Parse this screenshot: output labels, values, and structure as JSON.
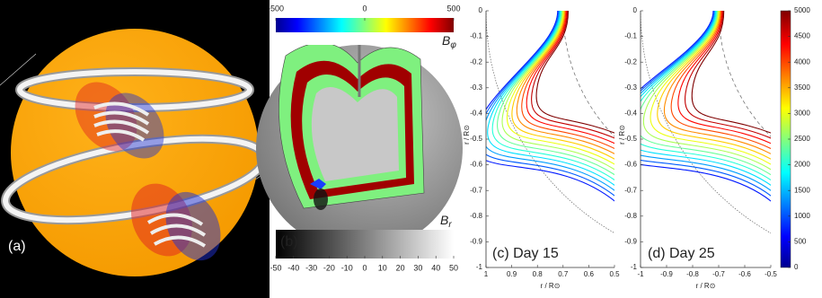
{
  "panels": [
    {
      "label": "(a)"
    },
    {
      "label": "(b)",
      "top_colorbar": {
        "lim": [
          -500,
          500
        ],
        "ticks": [
          -500,
          0,
          500
        ],
        "label": "B",
        "label_subscript": "φ"
      },
      "bottom_colorbar": {
        "lim": [
          -50,
          50
        ],
        "ticks": [
          -50,
          -40,
          -30,
          -20,
          -10,
          0,
          10,
          20,
          30,
          40,
          50
        ],
        "label": "B",
        "label_subscript": "r"
      }
    },
    {
      "label": "(c) Day 15",
      "xlim": [
        1,
        0.5
      ],
      "ylim": [
        -1,
        0
      ],
      "xticks": [
        1,
        0.9,
        0.8,
        0.7,
        0.6,
        0.5
      ],
      "yticks": [
        0,
        -0.1,
        -0.2,
        -0.3,
        -0.4,
        -0.5,
        -0.6,
        -0.7,
        -0.8,
        -0.9,
        -1
      ],
      "xlabel": "r / R⊙",
      "ylabel": "r / R⊙"
    },
    {
      "label": "(d) Day 25",
      "xlim": [
        -1,
        -0.5
      ],
      "ylim": [
        -1,
        0
      ],
      "xticks": [
        -1,
        -0.9,
        -0.8,
        -0.7,
        -0.6,
        -0.5
      ],
      "yticks": [
        0,
        -0.1,
        -0.2,
        -0.3,
        -0.4,
        -0.5,
        -0.6,
        -0.7,
        -0.8,
        -0.9,
        -1
      ],
      "xlabel": "r / R⊙",
      "ylabel": "r / R⊙",
      "colorbar": {
        "lim": [
          0,
          5000
        ],
        "ticks": [
          0,
          500,
          1000,
          1500,
          2000,
          2500,
          3000,
          3500,
          4000,
          4500,
          5000
        ]
      }
    }
  ]
}
